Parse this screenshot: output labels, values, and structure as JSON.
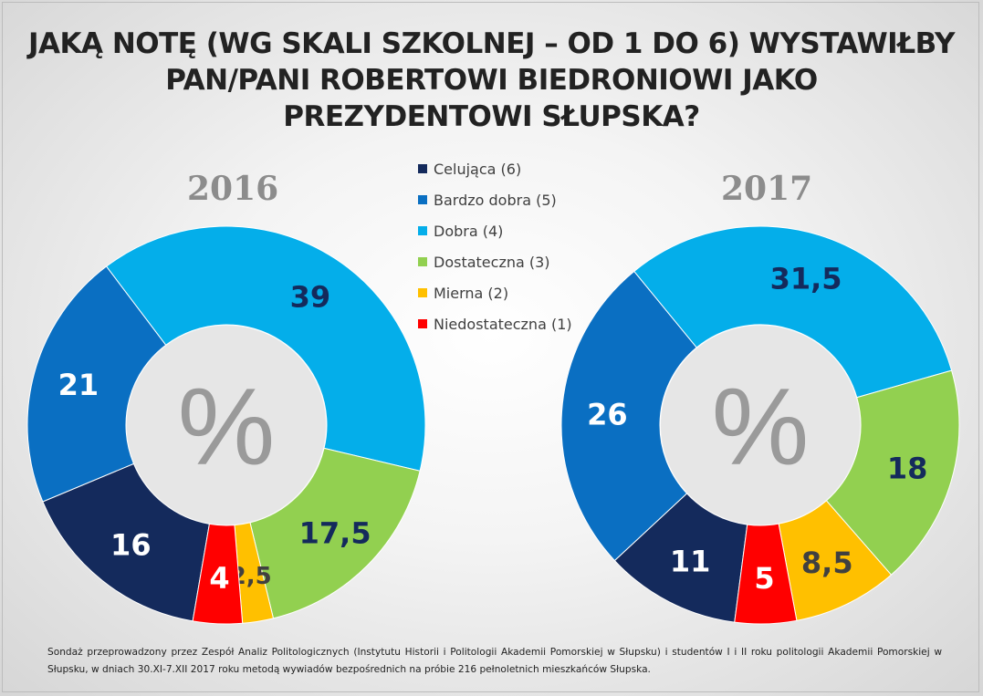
{
  "title_lines": [
    "JAKĄ NOTĘ (WG SKALI SZKOLNEJ – OD 1 DO 6) WYSTAWIŁBY",
    "PAN/PANI ROBERTOWI BIEDRONIOWI JAKO",
    "PREZYDENTOWI SŁUPSKA?"
  ],
  "footnote": "Sondaż przeprowadzony przez Zespół Analiz Politologicznych (Instytutu Historii i Politologii Akademii Pomorskiej w Słupsku) i studentów I i II roku politologii Akademii Pomorskiej w Słupsku, w dniach 30.XI-7.XII 2017 roku metodą wywiadów bezpośrednich na próbie 216 pełnoletnich mieszkańców Słupska.",
  "chart_data": {
    "type": "pie",
    "variant": "doughnut",
    "center_label": "%",
    "categories": [
      "Celująca (6)",
      "Bardzo dobra (5)",
      "Dobra (4)",
      "Dostateczna (3)",
      "Mierna (2)",
      "Niedostateczna (1)"
    ],
    "colors": [
      "#142a5c",
      "#0a6fc2",
      "#04aeea",
      "#92d050",
      "#ffc000",
      "#ff0000"
    ],
    "label_colors": [
      "#ffffff",
      "#ffffff",
      "#142a5c",
      "#142a5c",
      "#404040",
      "#ffffff"
    ],
    "legend_position": "center",
    "series": [
      {
        "name": "2016",
        "labels": [
          "16",
          "21",
          "39",
          "17,5",
          "2,5",
          "4"
        ],
        "values": [
          16,
          21,
          39,
          17.5,
          2.5,
          4
        ]
      },
      {
        "name": "2017",
        "labels": [
          "11",
          "26",
          "31,5",
          "18",
          "8,5",
          "5"
        ],
        "values": [
          11,
          26,
          31.5,
          18,
          8.5,
          5
        ]
      }
    ]
  }
}
